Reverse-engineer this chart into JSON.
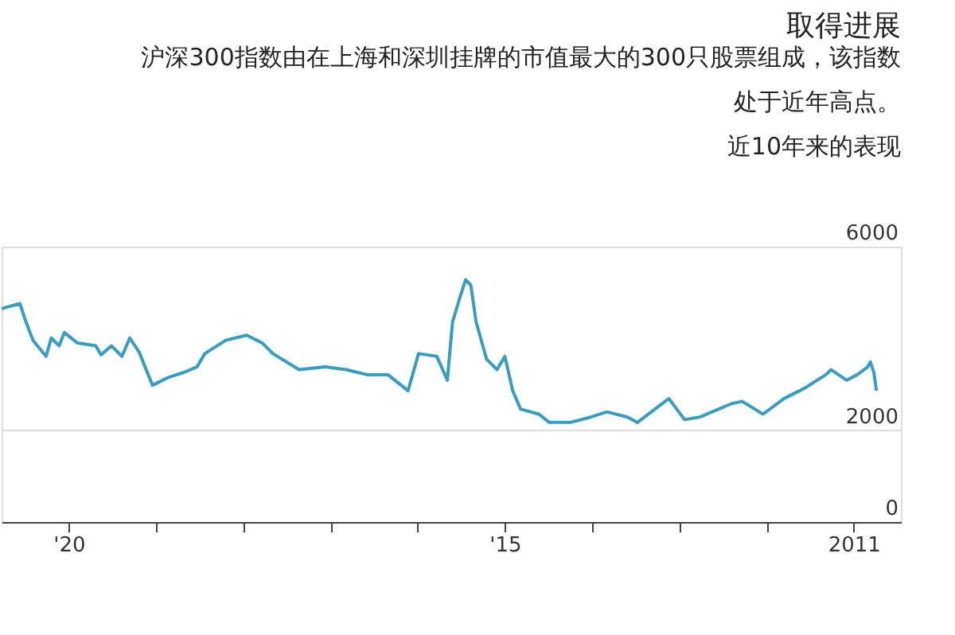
{
  "chart_data": {
    "type": "line",
    "title": "取得进展",
    "subtitle": [
      "沪深300指数由在上海和深圳挂牌的市值最大的300只股票组成，该指数",
      "处于近年高点。",
      "近10年来的表现"
    ],
    "x": [
      2020.77,
      2020.56,
      2020.5,
      2020.41,
      2020.26,
      2020.2,
      2020.11,
      2020.05,
      2019.9,
      2019.69,
      2019.63,
      2019.51,
      2019.39,
      2019.3,
      2019.19,
      2019.04,
      2018.86,
      2018.68,
      2018.53,
      2018.44,
      2018.2,
      2017.96,
      2017.78,
      2017.66,
      2017.36,
      2017.06,
      2016.82,
      2016.58,
      2016.34,
      2016.11,
      2015.99,
      2015.78,
      2015.66,
      2015.6,
      2015.51,
      2015.45,
      2015.39,
      2015.33,
      2015.21,
      2015.09,
      2015.0,
      2014.91,
      2014.82,
      2014.61,
      2014.49,
      2014.25,
      2014.01,
      2013.83,
      2013.6,
      2013.48,
      2013.12,
      2012.94,
      2012.76,
      2012.4,
      2012.28,
      2012.04,
      2011.8,
      2011.56,
      2011.32,
      2011.26,
      2011.08,
      2010.96,
      2010.84,
      2010.81,
      2010.77,
      2010.74
    ],
    "series": [
      {
        "color": "#3a9cbf",
        "values": [
          4650,
          4760,
          4410,
          3960,
          3610,
          4010,
          3840,
          4130,
          3900,
          3840,
          3640,
          3840,
          3610,
          4010,
          3690,
          2980,
          3150,
          3260,
          3380,
          3670,
          3960,
          4070,
          3900,
          3670,
          3320,
          3380,
          3320,
          3210,
          3210,
          2860,
          3670,
          3610,
          3090,
          4360,
          4930,
          5280,
          5160,
          4360,
          3550,
          3320,
          3610,
          2860,
          2460,
          2350,
          2170,
          2170,
          2290,
          2400,
          2290,
          2170,
          2690,
          2230,
          2290,
          2580,
          2630,
          2350,
          2690,
          2920,
          3210,
          3320,
          3090,
          3210,
          3380,
          3490,
          3260,
          2860
        ]
      }
    ],
    "xlim": [
      2020.77,
      2010.46
    ],
    "xticks": [
      {
        "value": 2020,
        "label": "'20"
      },
      {
        "value": 2019,
        "label": null
      },
      {
        "value": 2018,
        "label": null
      },
      {
        "value": 2017,
        "label": null
      },
      {
        "value": 2016,
        "label": null
      },
      {
        "value": 2015,
        "label": "'15"
      },
      {
        "value": 2014,
        "label": null
      },
      {
        "value": 2013,
        "label": null
      },
      {
        "value": 2012,
        "label": null
      },
      {
        "value": 2011,
        "label": "2011"
      }
    ],
    "ylim": [
      0,
      6000
    ],
    "yticks": [
      0,
      2000,
      6000
    ],
    "grid": "y",
    "line_style": "solid",
    "marker": "none"
  }
}
